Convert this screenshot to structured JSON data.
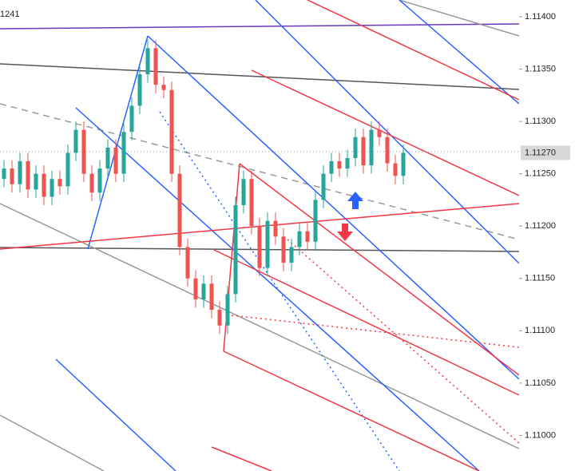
{
  "chart_data": {
    "type": "candlestick",
    "corner_label": "1241",
    "x": [
      0,
      1,
      2,
      3,
      4,
      5,
      6,
      7,
      8,
      9,
      10,
      11,
      12,
      13,
      14,
      15,
      16,
      17,
      18,
      19,
      20,
      21,
      22,
      23,
      24,
      25,
      26,
      27,
      28,
      29,
      30,
      31,
      32,
      33,
      34,
      35,
      36,
      37,
      38,
      39,
      40,
      41,
      42,
      43,
      44,
      45,
      46,
      47,
      48,
      49,
      50
    ],
    "open": [
      1.11245,
      1.11255,
      1.1124,
      1.11262,
      1.11235,
      1.1125,
      1.11228,
      1.11245,
      1.11238,
      1.1127,
      1.11292,
      1.1125,
      1.11232,
      1.11255,
      1.11275,
      1.1125,
      1.1129,
      1.11315,
      1.11345,
      1.1137,
      1.11335,
      1.1133,
      1.1125,
      1.1118,
      1.1115,
      1.1113,
      1.11145,
      1.1112,
      1.11105,
      1.11135,
      1.1122,
      1.11245,
      1.112,
      1.1116,
      1.11205,
      1.1119,
      1.11165,
      1.1118,
      1.11195,
      1.11185,
      1.11225,
      1.1125,
      1.11262,
      1.11255,
      1.11265,
      1.11285,
      1.11258,
      1.11292,
      1.11285,
      1.1126,
      1.11248
    ],
    "high": [
      1.11263,
      1.11263,
      1.1127,
      1.1127,
      1.11258,
      1.11258,
      1.11253,
      1.11253,
      1.11278,
      1.113,
      1.113,
      1.11258,
      1.11263,
      1.11283,
      1.11283,
      1.11298,
      1.11323,
      1.11353,
      1.11378,
      1.11378,
      1.11343,
      1.11338,
      1.11258,
      1.11188,
      1.11158,
      1.11153,
      1.11153,
      1.11128,
      1.11143,
      1.11228,
      1.11253,
      1.11253,
      1.11208,
      1.11213,
      1.11213,
      1.11198,
      1.11188,
      1.11203,
      1.11203,
      1.11233,
      1.11258,
      1.1127,
      1.1127,
      1.11273,
      1.11293,
      1.11293,
      1.113,
      1.113,
      1.11293,
      1.11268,
      1.11278
    ],
    "low": [
      1.11237,
      1.11232,
      1.11232,
      1.11227,
      1.11227,
      1.1122,
      1.1122,
      1.1123,
      1.1123,
      1.11262,
      1.11242,
      1.11224,
      1.11224,
      1.11247,
      1.11242,
      1.11242,
      1.11282,
      1.11307,
      1.11337,
      1.11327,
      1.11322,
      1.11242,
      1.11172,
      1.11142,
      1.11122,
      1.11122,
      1.11112,
      1.11097,
      1.11097,
      1.11127,
      1.11212,
      1.11192,
      1.11152,
      1.11152,
      1.11182,
      1.11157,
      1.11157,
      1.11172,
      1.11177,
      1.11177,
      1.11217,
      1.11242,
      1.11247,
      1.11247,
      1.11257,
      1.1125,
      1.1125,
      1.11277,
      1.11252,
      1.1124,
      1.1124
    ],
    "close": [
      1.11255,
      1.1124,
      1.11262,
      1.11235,
      1.1125,
      1.11228,
      1.11245,
      1.11238,
      1.1127,
      1.11292,
      1.1125,
      1.11232,
      1.11255,
      1.11275,
      1.1125,
      1.1129,
      1.11315,
      1.11345,
      1.1137,
      1.11335,
      1.1133,
      1.1125,
      1.1118,
      1.1115,
      1.1113,
      1.11145,
      1.1112,
      1.11105,
      1.11135,
      1.1122,
      1.11245,
      1.112,
      1.1116,
      1.11205,
      1.1119,
      1.11165,
      1.1118,
      1.11195,
      1.11185,
      1.11225,
      1.1125,
      1.11262,
      1.11255,
      1.11265,
      1.11285,
      1.11258,
      1.11292,
      1.11285,
      1.1126,
      1.11248,
      1.1127
    ],
    "up_color": "#26a69a",
    "down_color": "#ef5350",
    "xlim": [
      -0.5,
      64.5
    ],
    "ylim": [
      1.10966,
      1.11416
    ],
    "yticks": [
      {
        "value": 1.114,
        "label": "1.11400"
      },
      {
        "value": 1.1135,
        "label": "1.11350"
      },
      {
        "value": 1.113,
        "label": "1.11300"
      },
      {
        "value": 1.1125,
        "label": "1.11250"
      },
      {
        "value": 1.112,
        "label": "1.11200"
      },
      {
        "value": 1.1115,
        "label": "1.11150"
      },
      {
        "value": 1.111,
        "label": "1.11100"
      },
      {
        "value": 1.1105,
        "label": "1.11050"
      },
      {
        "value": 1.11,
        "label": "1.11000"
      }
    ],
    "current_price": {
      "value": 1.1127,
      "label": "1.11270"
    }
  }
}
